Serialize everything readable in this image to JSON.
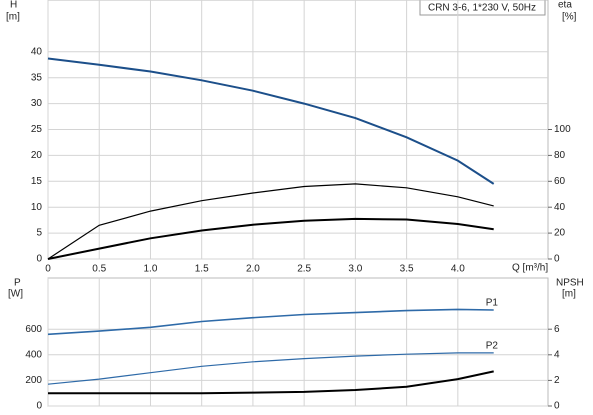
{
  "chart_data": [
    {
      "type": "line",
      "title": "CRN 3-6, 1*230 V, 50Hz",
      "x_label": "Q [m³/h]",
      "y_label": "H",
      "y_unit": "[m]",
      "y2_label": "eta",
      "y2_unit": "[%]",
      "xlim": [
        0,
        4.88
      ],
      "ylim": [
        0,
        50
      ],
      "y2lim": [
        0,
        200
      ],
      "xticks": [
        0,
        0.5,
        {
          "value": 1,
          "label": "1.0"
        },
        1.5,
        {
          "value": 2,
          "label": "2.0"
        },
        2.5,
        {
          "value": 3,
          "label": "3.0"
        },
        3.5,
        {
          "value": 4,
          "label": "4.0"
        }
      ],
      "yticks": [
        0,
        5,
        10,
        15,
        20,
        25,
        30,
        35,
        40
      ],
      "y2ticks": [
        0,
        20,
        40,
        60,
        80,
        100
      ],
      "grid": true,
      "series": [
        {
          "color": "#1c4f8a",
          "linewidth": 2,
          "x": [
            0,
            0.5,
            1,
            1.5,
            2,
            2.5,
            3,
            3.5,
            4,
            4.35
          ],
          "values": [
            38.7,
            37.5,
            36.2,
            34.5,
            32.5,
            30,
            27.2,
            23.5,
            19,
            14.5
          ]
        },
        {
          "color": "#000000",
          "linewidth": 1.2,
          "axis": "y2",
          "x": [
            0,
            0.5,
            1,
            1.5,
            2,
            2.5,
            3,
            3.5,
            4,
            4.35
          ],
          "values": [
            0,
            26,
            37,
            45,
            51,
            56,
            58,
            55,
            48,
            41
          ]
        },
        {
          "color": "#000000",
          "linewidth": 2,
          "axis": "y2",
          "x": [
            0,
            0.5,
            1,
            1.5,
            2,
            2.5,
            3,
            3.5,
            4,
            4.35
          ],
          "values": [
            0,
            8,
            16,
            22,
            26.5,
            29.5,
            31,
            30.5,
            27,
            23
          ]
        }
      ]
    },
    {
      "type": "line",
      "y_label": "P",
      "y_unit": "[W]",
      "y2_label": "NPSH",
      "y2_unit": "[m]",
      "xlim": [
        0,
        4.88
      ],
      "ylim": [
        0,
        1000
      ],
      "y2lim": [
        0,
        10
      ],
      "xticks": [
        0,
        0.5,
        1,
        1.5,
        2,
        2.5,
        3,
        3.5,
        4
      ],
      "yticks": [
        0,
        200,
        400,
        600
      ],
      "y2ticks": [
        0,
        2,
        4,
        6
      ],
      "grid": true,
      "series": [
        {
          "name": "P1",
          "color": "#2e6aa8",
          "linewidth": 1.6,
          "x": [
            0,
            0.5,
            1,
            1.5,
            2,
            2.5,
            3,
            3.5,
            4,
            4.35
          ],
          "values": [
            560,
            585,
            615,
            660,
            690,
            715,
            730,
            745,
            755,
            750
          ]
        },
        {
          "name": "P2",
          "color": "#2e6aa8",
          "linewidth": 1.2,
          "x": [
            0,
            0.5,
            1,
            1.5,
            2,
            2.5,
            3,
            3.5,
            4,
            4.35
          ],
          "values": [
            170,
            210,
            260,
            310,
            345,
            370,
            390,
            405,
            415,
            415
          ]
        },
        {
          "color": "#000000",
          "linewidth": 2,
          "axis": "y2",
          "x": [
            0,
            1.2,
            1.5,
            2,
            2.5,
            3,
            3.5,
            4,
            4.35
          ],
          "values": [
            1,
            1,
            1,
            1.05,
            1.1,
            1.25,
            1.5,
            2.1,
            2.7
          ]
        }
      ]
    }
  ]
}
